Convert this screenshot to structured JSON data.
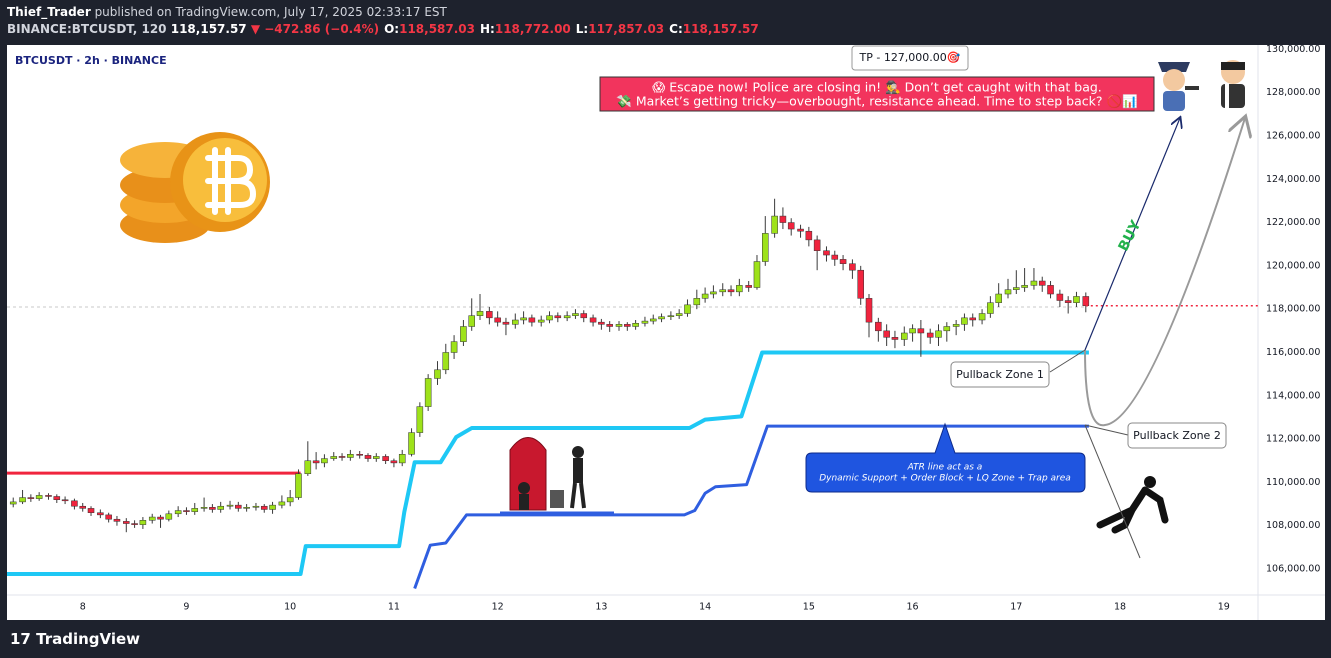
{
  "header": {
    "author": "Thief_Trader",
    "published": "published on TradingView.com, July 17, 2025 02:33:17 EST",
    "symbol": "BINANCE:BTCUSDT, 120",
    "price": "118,157.57",
    "change": "▼ −472.86 (−0.4%)",
    "ohlc": [
      {
        "label": "O:",
        "value": "118,587.03"
      },
      {
        "label": "H:",
        "value": "118,772.00"
      },
      {
        "label": "L:",
        "value": "117,857.03"
      },
      {
        "label": "C:",
        "value": "118,157.57"
      }
    ]
  },
  "chart_data": {
    "type": "candlestick",
    "title": "BTCUSDT · 2h · BINANCE",
    "up_color": "#9ee21a",
    "down_color": "#f0243e",
    "wick_color": "#3a3a3a",
    "xlim": [
      7.27,
      19.33
    ],
    "xticks": [
      8,
      9,
      10,
      11,
      12,
      13,
      14,
      15,
      16,
      17,
      18,
      19
    ],
    "ylim": [
      104800,
      130200
    ],
    "yticks": [
      {
        "value": 106000,
        "label": "106,000.00"
      },
      {
        "value": 108000,
        "label": "108,000.00"
      },
      {
        "value": 110000,
        "label": "110,000.00"
      },
      {
        "value": 112000,
        "label": "112,000.00"
      },
      {
        "value": 114000,
        "label": "114,000.00"
      },
      {
        "value": 116000,
        "label": "116,000.00"
      },
      {
        "value": 118000,
        "label": "118,000.00"
      },
      {
        "value": 120000,
        "label": "120,000.00"
      },
      {
        "value": 122000,
        "label": "122,000.00"
      },
      {
        "value": 124000,
        "label": "124,000.00"
      },
      {
        "value": 126000,
        "label": "126,000.00"
      },
      {
        "value": 128000,
        "label": "128,000.00"
      },
      {
        "value": 130000,
        "label": "130,000.00"
      }
    ],
    "candles": {
      "x": [
        7.33,
        7.42,
        7.5,
        7.58,
        7.67,
        7.75,
        7.83,
        7.92,
        8,
        8.08,
        8.17,
        8.25,
        8.33,
        8.42,
        8.5,
        8.58,
        8.67,
        8.75,
        8.83,
        8.92,
        9,
        9.08,
        9.17,
        9.25,
        9.33,
        9.42,
        9.5,
        9.58,
        9.67,
        9.75,
        9.83,
        9.92,
        10,
        10.08,
        10.17,
        10.25,
        10.33,
        10.42,
        10.5,
        10.58,
        10.67,
        10.75,
        10.83,
        10.92,
        11,
        11.08,
        11.17,
        11.25,
        11.33,
        11.42,
        11.5,
        11.58,
        11.67,
        11.75,
        11.83,
        11.92,
        12,
        12.08,
        12.17,
        12.25,
        12.33,
        12.42,
        12.5,
        12.58,
        12.67,
        12.75,
        12.83,
        12.92,
        13,
        13.08,
        13.17,
        13.25,
        13.33,
        13.42,
        13.5,
        13.58,
        13.67,
        13.75,
        13.83,
        13.92,
        14,
        14.08,
        14.17,
        14.25,
        14.33,
        14.42,
        14.5,
        14.58,
        14.67,
        14.75,
        14.83,
        14.92,
        15,
        15.08,
        15.17,
        15.25,
        15.33,
        15.42,
        15.5,
        15.58,
        15.67,
        15.75,
        15.83,
        15.92,
        16,
        16.08,
        16.17,
        16.25,
        16.33,
        16.42,
        16.5,
        16.58,
        16.67,
        16.75,
        16.83,
        16.92,
        17,
        17.08,
        17.17,
        17.25,
        17.33,
        17.42,
        17.5,
        17.58,
        17.67
      ],
      "open": [
        109000,
        109100,
        109300,
        109250,
        109400,
        109350,
        109200,
        109150,
        108900,
        108800,
        108600,
        108500,
        108300,
        108200,
        108100,
        108050,
        108250,
        108400,
        108300,
        108550,
        108700,
        108650,
        108800,
        108850,
        108750,
        108900,
        108950,
        108800,
        108850,
        108900,
        108750,
        108950,
        109100,
        109300,
        110400,
        111000,
        110900,
        111100,
        111200,
        111150,
        111300,
        111250,
        111100,
        111200,
        111000,
        110900,
        111300,
        112300,
        113500,
        114800,
        115200,
        116000,
        116500,
        117200,
        117700,
        117900,
        117600,
        117400,
        117300,
        117500,
        117600,
        117400,
        117500,
        117700,
        117600,
        117700,
        117800,
        117600,
        117400,
        117300,
        117200,
        117300,
        117200,
        117350,
        117450,
        117550,
        117650,
        117700,
        117800,
        118200,
        118500,
        118700,
        118800,
        118900,
        118800,
        119100,
        119000,
        120200,
        121500,
        122300,
        122000,
        121700,
        121600,
        121200,
        120700,
        120500,
        120300,
        120100,
        119800,
        118500,
        117400,
        117000,
        116700,
        116600,
        116900,
        117100,
        116900,
        116700,
        117000,
        117200,
        117300,
        117600,
        117500,
        117800,
        118300,
        118700,
        118900,
        119000,
        119100,
        119300,
        119100,
        118700,
        118400,
        118300,
        118587.03
      ],
      "high": [
        109300,
        109650,
        109450,
        109550,
        109500,
        109450,
        109350,
        109250,
        109050,
        108900,
        108750,
        108600,
        108450,
        108350,
        108250,
        108400,
        108550,
        108500,
        108700,
        108900,
        108850,
        109050,
        109300,
        109000,
        109100,
        109150,
        109100,
        109000,
        109050,
        109000,
        109100,
        109400,
        109650,
        110600,
        111900,
        111400,
        111300,
        111400,
        111350,
        111500,
        111450,
        111350,
        111350,
        111300,
        111100,
        111500,
        112500,
        113700,
        115000,
        115600,
        116400,
        116800,
        117500,
        118500,
        118700,
        118100,
        117900,
        117600,
        117800,
        117900,
        117750,
        117700,
        117900,
        117850,
        117900,
        118000,
        117950,
        117750,
        117550,
        117450,
        117450,
        117400,
        117500,
        117650,
        117750,
        117800,
        117900,
        118000,
        118450,
        118900,
        119000,
        119100,
        119200,
        119100,
        119400,
        119300,
        120500,
        122300,
        123100,
        122700,
        122200,
        121900,
        121800,
        121400,
        120900,
        120700,
        120500,
        120300,
        120000,
        118700,
        117600,
        117300,
        117000,
        117200,
        117300,
        117500,
        117100,
        117300,
        117400,
        117500,
        117800,
        117800,
        118000,
        118600,
        119200,
        119400,
        119800,
        119900,
        119900,
        119500,
        119300,
        118900,
        118600,
        118800,
        118772
      ],
      "low": [
        108850,
        109000,
        109100,
        109150,
        109200,
        109050,
        109000,
        108750,
        108650,
        108450,
        108350,
        108150,
        108000,
        107700,
        107900,
        107850,
        108100,
        107900,
        108200,
        108400,
        108500,
        108500,
        108650,
        108600,
        108600,
        108750,
        108650,
        108650,
        108700,
        108600,
        108550,
        108800,
        108900,
        109200,
        110300,
        110600,
        110700,
        111000,
        111000,
        111000,
        111100,
        110950,
        110950,
        110850,
        110700,
        110750,
        111200,
        112100,
        113300,
        114500,
        115000,
        115700,
        116300,
        117000,
        117500,
        117300,
        117200,
        116800,
        117100,
        117300,
        117200,
        117200,
        117350,
        117400,
        117450,
        117550,
        117400,
        117200,
        117050,
        116950,
        117000,
        117000,
        117050,
        117200,
        117300,
        117400,
        117500,
        117550,
        117650,
        118000,
        118300,
        118500,
        118600,
        118600,
        118600,
        118800,
        118900,
        120000,
        121300,
        121700,
        121400,
        121300,
        120900,
        119800,
        120200,
        120000,
        119800,
        119400,
        118200,
        116700,
        116500,
        116300,
        116200,
        116300,
        116500,
        115800,
        116400,
        116300,
        116500,
        116800,
        117000,
        117200,
        117300,
        117600,
        118100,
        118500,
        118700,
        118800,
        118900,
        118800,
        118500,
        118100,
        117800,
        118100,
        117857.03
      ],
      "close": [
        109100,
        109300,
        109250,
        109400,
        109350,
        109200,
        109150,
        108900,
        108800,
        108600,
        108500,
        108300,
        108200,
        108100,
        108050,
        108250,
        108400,
        108300,
        108550,
        108700,
        108650,
        108800,
        108850,
        108750,
        108900,
        108950,
        108800,
        108850,
        108900,
        108750,
        108950,
        109100,
        109300,
        110400,
        111000,
        110900,
        111100,
        111200,
        111150,
        111300,
        111250,
        111100,
        111200,
        111000,
        110900,
        111300,
        112300,
        113500,
        114800,
        115200,
        116000,
        116500,
        117200,
        117700,
        117900,
        117600,
        117400,
        117300,
        117500,
        117600,
        117400,
        117500,
        117700,
        117600,
        117700,
        117800,
        117600,
        117400,
        117300,
        117200,
        117300,
        117200,
        117350,
        117450,
        117550,
        117650,
        117700,
        117800,
        118200,
        118500,
        118700,
        118800,
        118900,
        118800,
        119100,
        119000,
        120200,
        121500,
        122300,
        122000,
        121700,
        121600,
        121200,
        120700,
        120500,
        120300,
        120100,
        119800,
        118500,
        117400,
        117000,
        116700,
        116600,
        116900,
        117100,
        116900,
        116700,
        117000,
        117200,
        117300,
        117600,
        117500,
        117800,
        118300,
        118700,
        118900,
        119000,
        119100,
        119300,
        119100,
        118700,
        118400,
        118300,
        118587.03,
        118157.57
      ]
    },
    "lines": [
      {
        "color": "#1ec8f5",
        "width": 4,
        "x": [
          7.27,
          10.1,
          10.15,
          11.05,
          11.1,
          11.2,
          11.45,
          11.6,
          11.75,
          13.85,
          14.0,
          14.35,
          14.55,
          17.7
        ],
        "values": [
          105770,
          105770,
          107060,
          107060,
          108630,
          110930,
          110930,
          112090,
          112510,
          112510,
          112900,
          113050,
          116000,
          116000
        ]
      },
      {
        "color": "#2f5ee0",
        "width": 3,
        "x": [
          11.2,
          11.35,
          11.5,
          11.7,
          13.8,
          13.9,
          14.0,
          14.1,
          14.4,
          14.6,
          17.7
        ],
        "values": [
          105100,
          107100,
          107200,
          108500,
          108500,
          108700,
          109500,
          109800,
          109900,
          112600,
          112600
        ]
      },
      {
        "color": "#f0243e",
        "width": 3,
        "x": [
          7.27,
          10.1
        ],
        "values": [
          110430,
          110430
        ]
      }
    ],
    "annotations": {
      "tp": "TP - 127,000.00🎯",
      "banner": [
        "😱 Escape now! Police are closing in! 🕵️‍♂️ Don’t get caught with that bag.",
        "💸 Market’s getting tricky—overbought, resistance ahead. Time to step back? 🚫📊"
      ],
      "buy": "BUY",
      "zone1": "Pullback Zone 1",
      "zone2": "Pullback Zone 2",
      "note": [
        "ATR line act as a",
        "Dynamic Support + Order Block + LQ Zone + Trap area"
      ]
    }
  },
  "footer": {
    "brand": "TradingView"
  }
}
